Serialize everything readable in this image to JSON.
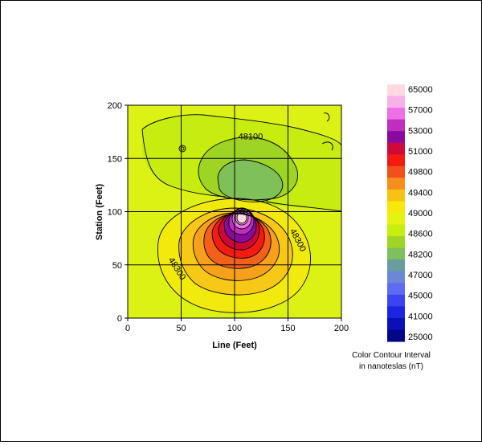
{
  "chart_data": {
    "type": "contour",
    "xlabel": "Line (Feet)",
    "ylabel": "Station (Feet)",
    "xlim": [
      0,
      200
    ],
    "ylim": [
      0,
      200
    ],
    "x_ticks": [
      "0",
      "50",
      "100",
      "150",
      "200"
    ],
    "y_ticks": [
      "0",
      "50",
      "100",
      "150",
      "200"
    ],
    "grid": true,
    "contour_labels": [
      {
        "text": "48100",
        "x": 115,
        "y": 168
      },
      {
        "text": "48300",
        "x": 157,
        "y": 72
      },
      {
        "text": "48300",
        "x": 44,
        "y": 45
      }
    ],
    "anomaly_peak": {
      "x": 106,
      "y": 95,
      "value": 65000
    },
    "legend": {
      "title_line1": "Color Contour Interval",
      "title_line2": "in nanoteslas (nT)",
      "labels": [
        "65000",
        "57000",
        "53000",
        "51000",
        "49800",
        "49400",
        "49000",
        "48600",
        "48200",
        "47000",
        "45000",
        "41000",
        "25000"
      ],
      "colors": [
        "#ffd8e0",
        "#f7b0e8",
        "#ee6fe6",
        "#c02ec0",
        "#8a0aa0",
        "#cf0a38",
        "#f41a10",
        "#f2501a",
        "#f78e1c",
        "#f8c212",
        "#f5e80a",
        "#e4f410",
        "#c8ee0e",
        "#9ed424",
        "#7ec060",
        "#6a9ca0",
        "#6c86d8",
        "#5d6cf2",
        "#3a44f0",
        "#1c26e2",
        "#0a10b8",
        "#000888"
      ]
    }
  }
}
